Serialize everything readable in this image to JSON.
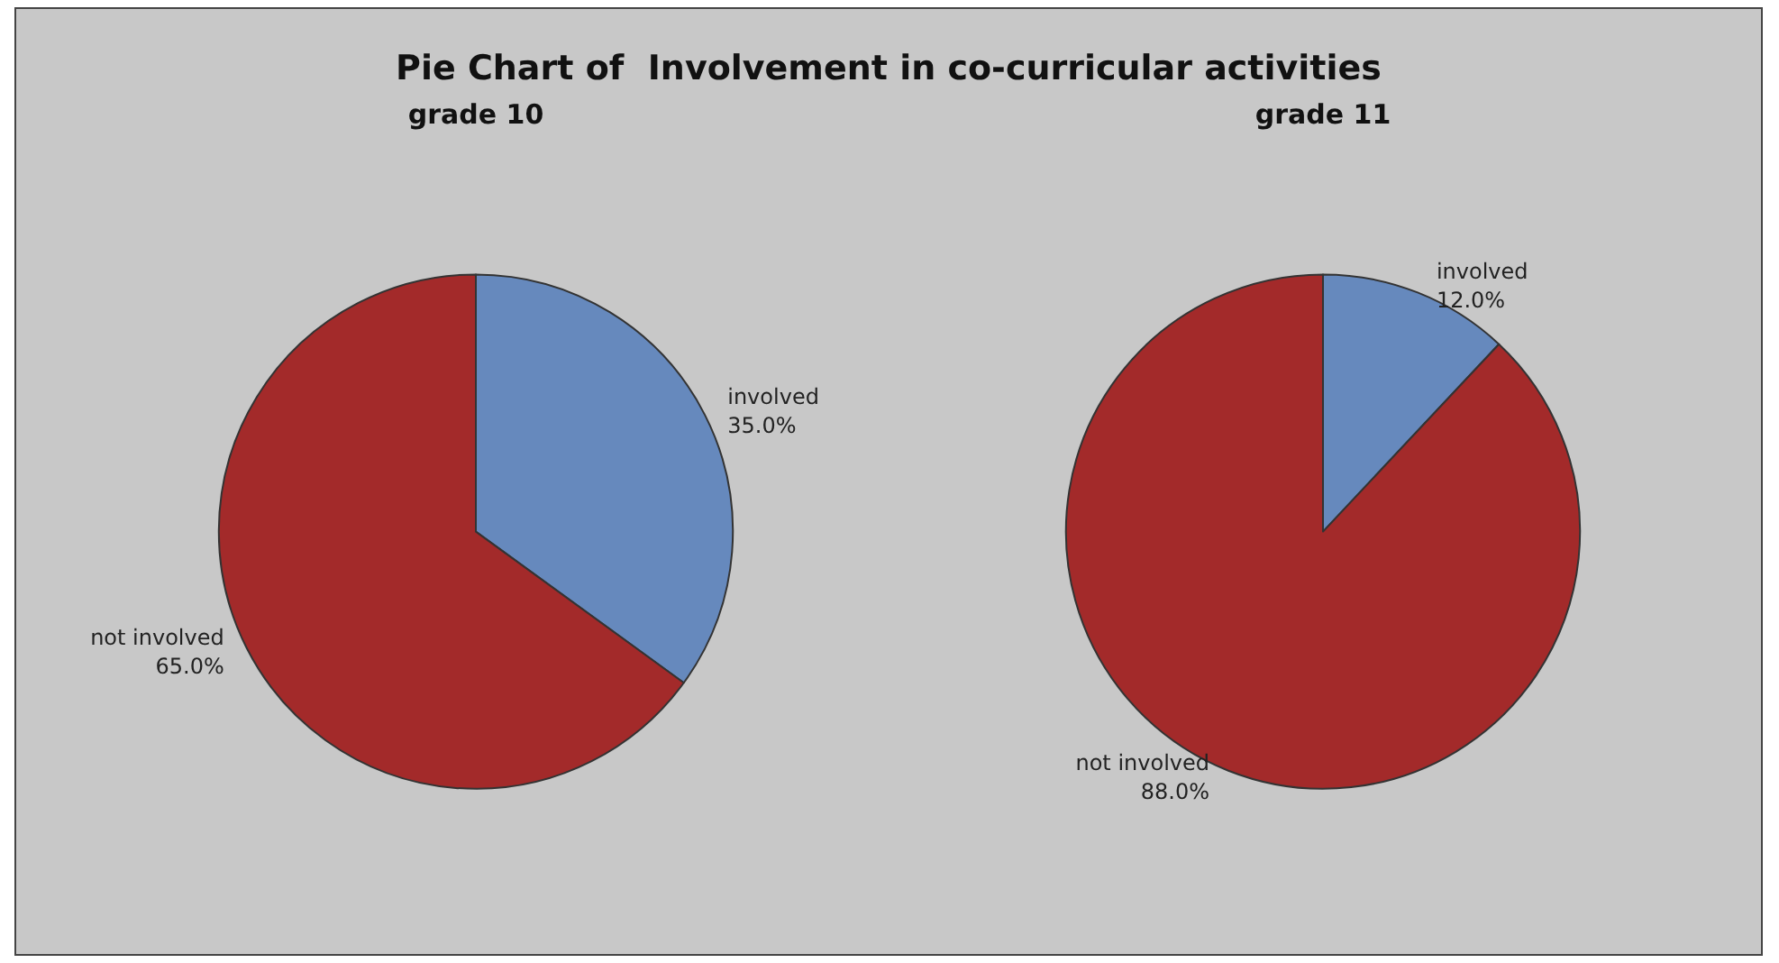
{
  "chart_data": [
    {
      "type": "pie",
      "title": "Pie Chart of  Involvement in co-curricular activities",
      "subtitle": "grade 10",
      "categories": [
        "involved",
        "not involved"
      ],
      "values": [
        35,
        65
      ],
      "value_labels": [
        "35.0%",
        "65.0%"
      ],
      "colors": [
        "#6689bd",
        "#a32a2a"
      ]
    },
    {
      "type": "pie",
      "subtitle": "grade 11",
      "categories": [
        "involved",
        "not involved"
      ],
      "values": [
        12,
        88
      ],
      "value_labels": [
        "12.0%",
        "88.0%"
      ],
      "colors": [
        "#6689bd",
        "#a32a2a"
      ]
    }
  ]
}
